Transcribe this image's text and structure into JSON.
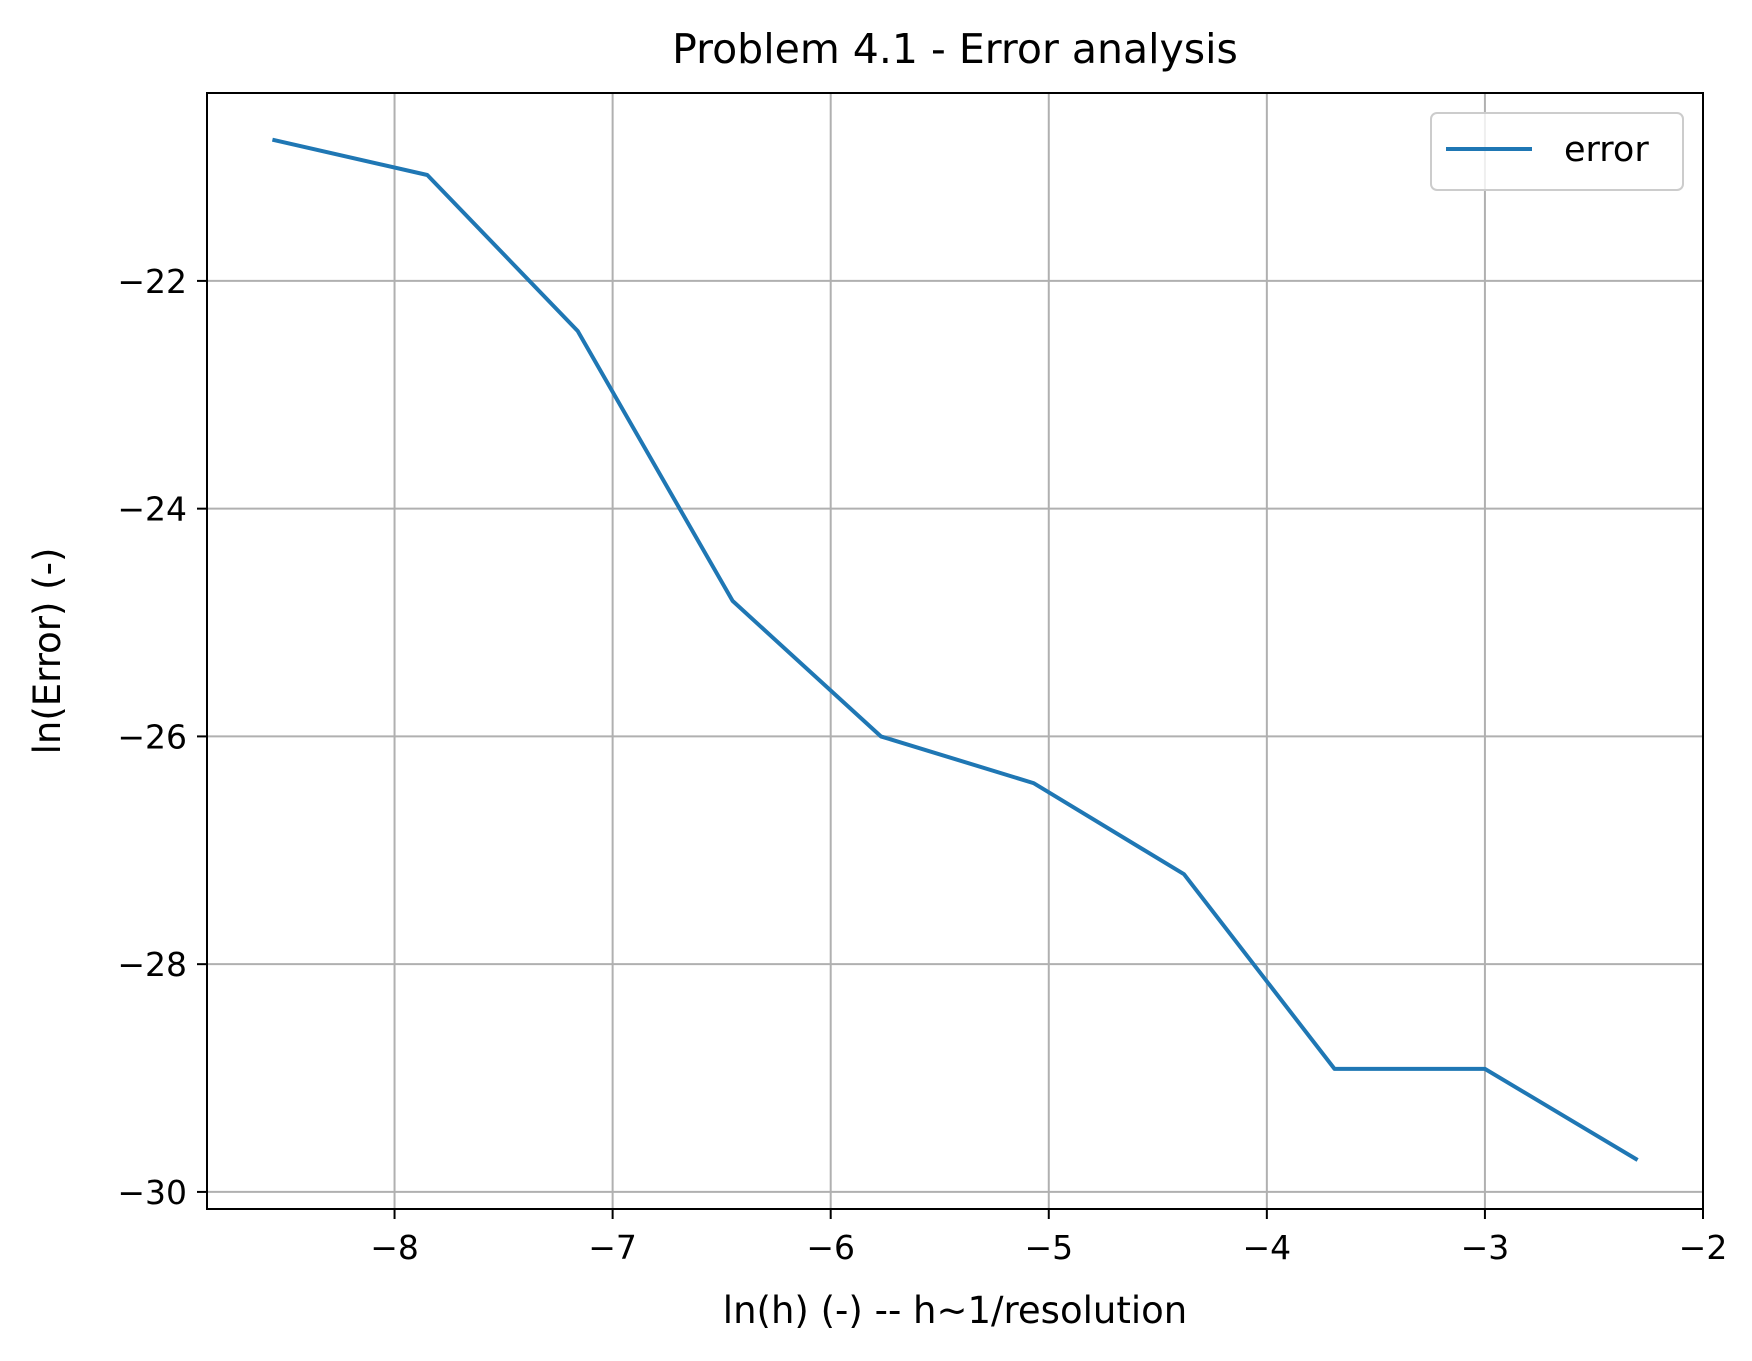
{
  "chart_data": {
    "type": "line",
    "title": "Problem 4.1 - Error analysis",
    "xlabel": "ln(h) (-) -- h~1/resolution",
    "ylabel": "ln(Error) (-)",
    "xlim": [
      -8.86,
      -2.0
    ],
    "ylim": [
      -30.15,
      -20.35
    ],
    "xticks": [
      -8,
      -7,
      -6,
      -5,
      -4,
      -3,
      -2
    ],
    "xtick_labels": [
      "−8",
      "−7",
      "−6",
      "−5",
      "−4",
      "−3",
      "−2"
    ],
    "yticks": [
      -30,
      -28,
      -26,
      -24,
      -22
    ],
    "ytick_labels": [
      "−30",
      "−28",
      "−26",
      "−24",
      "−22"
    ],
    "grid": true,
    "legend_position": "top-right",
    "series": [
      {
        "name": "error",
        "color": "#1f77b4",
        "x": [
          -8.56,
          -7.85,
          -7.16,
          -6.45,
          -5.77,
          -5.07,
          -4.38,
          -3.69,
          -3.0,
          -2.3
        ],
        "y": [
          -20.76,
          -21.07,
          -22.44,
          -24.81,
          -26.0,
          -26.41,
          -27.21,
          -28.92,
          -28.92,
          -29.72
        ]
      }
    ]
  }
}
